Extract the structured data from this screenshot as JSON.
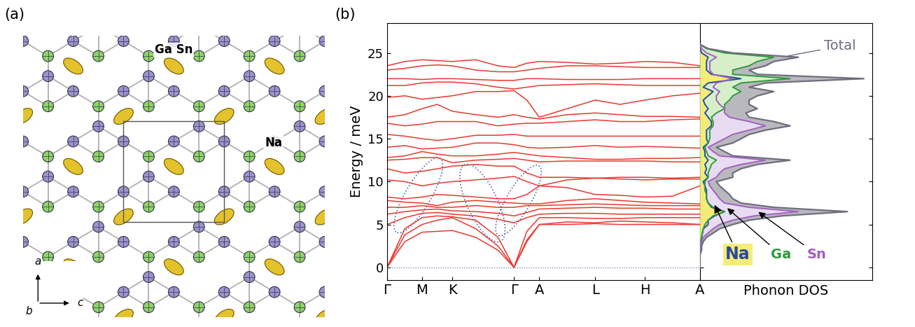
{
  "panel_labels": [
    "(a)",
    "(b)"
  ],
  "structure": {
    "labels": {
      "ga_sn": "Ga Sn",
      "na": "Na"
    },
    "axes": [
      "a",
      "b",
      "c"
    ]
  },
  "chart_data": [
    {
      "type": "line",
      "ylabel": "Energy / meV",
      "color": "#e8392e",
      "x": [
        0,
        40,
        79,
        113,
        147,
        200,
        250,
        286,
        315,
        343,
        406,
        469,
        525,
        581,
        643,
        705
      ],
      "series": [
        {
          "values": [
            0,
            3.0,
            4.1,
            4.2,
            4.3,
            3.5,
            2.0,
            0,
            3.0,
            5.0,
            5.0,
            5.1,
            5.0,
            5.0,
            5.0,
            5.0
          ]
        },
        {
          "values": [
            0,
            3.8,
            5.0,
            5.5,
            5.8,
            4.5,
            2.5,
            0,
            3.2,
            5.0,
            5.3,
            5.2,
            5.4,
            5.3,
            5.2,
            5.0
          ]
        },
        {
          "values": [
            0,
            4.5,
            5.8,
            6.0,
            5.9,
            5.5,
            3.5,
            0,
            4.2,
            5.8,
            5.8,
            5.7,
            5.7,
            5.8,
            5.8,
            5.8
          ]
        },
        {
          "values": [
            5.0,
            5.8,
            6.3,
            6.4,
            6.2,
            6.0,
            5.6,
            5.2,
            5.8,
            6.2,
            6.3,
            6.3,
            6.2,
            6.2,
            6.2,
            6.2
          ]
        },
        {
          "values": [
            6.2,
            6.5,
            6.7,
            6.8,
            6.6,
            6.5,
            6.3,
            6.0,
            6.4,
            6.8,
            6.9,
            7.0,
            6.9,
            6.9,
            6.8,
            6.8
          ]
        },
        {
          "values": [
            7.0,
            7.0,
            7.2,
            7.0,
            7.0,
            7.2,
            7.0,
            7.0,
            7.2,
            7.2,
            7.3,
            7.4,
            7.3,
            7.2,
            7.2,
            7.2
          ]
        },
        {
          "values": [
            7.8,
            7.6,
            7.5,
            7.2,
            7.6,
            7.8,
            7.6,
            7.5,
            7.4,
            7.4,
            7.8,
            8.0,
            7.8,
            7.6,
            7.5,
            7.4
          ]
        },
        {
          "values": [
            8.2,
            8.0,
            8.2,
            8.5,
            8.4,
            8.2,
            8.0,
            8.0,
            8.5,
            9.5,
            9.3,
            8.5,
            8.4,
            8.2,
            8.3,
            9.5
          ]
        },
        {
          "values": [
            10.2,
            10.0,
            9.5,
            9.8,
            10.0,
            10.2,
            10.4,
            10.6,
            10.0,
            9.5,
            10.2,
            10.4,
            10.3,
            10.2,
            10.3,
            10.3
          ]
        },
        {
          "values": [
            11.5,
            11.0,
            11.2,
            11.5,
            11.8,
            12.0,
            11.8,
            11.8,
            11.0,
            10.5,
            10.5,
            10.4,
            10.5,
            10.5,
            10.4,
            10.5
          ]
        },
        {
          "values": [
            12.5,
            12.6,
            12.8,
            12.8,
            12.2,
            12.5,
            12.6,
            12.7,
            12.5,
            12.3,
            12.4,
            12.4,
            12.4,
            12.4,
            12.3,
            12.3
          ]
        },
        {
          "values": [
            12.8,
            13.0,
            13.5,
            13.2,
            13.0,
            13.0,
            13.2,
            13.4,
            13.2,
            13.0,
            12.8,
            12.6,
            12.6,
            12.7,
            12.7,
            12.8
          ]
        },
        {
          "values": [
            14.0,
            14.2,
            13.8,
            13.9,
            14.0,
            14.5,
            14.5,
            14.3,
            14.0,
            13.9,
            14.0,
            14.2,
            14.0,
            14.1,
            14.0,
            13.9
          ]
        },
        {
          "values": [
            15.5,
            15.3,
            15.0,
            14.8,
            15.0,
            15.4,
            15.4,
            15.5,
            15.3,
            15.3,
            15.3,
            15.3,
            15.3,
            15.3,
            15.3,
            15.3
          ]
        },
        {
          "values": [
            16.8,
            16.5,
            16.7,
            17.0,
            17.0,
            17.0,
            16.5,
            16.7,
            16.8,
            16.8,
            17.0,
            17.2,
            17.0,
            17.0,
            17.2,
            17.3
          ]
        },
        {
          "values": [
            17.5,
            17.8,
            18.5,
            19.0,
            18.2,
            17.8,
            17.5,
            17.8,
            17.5,
            17.3,
            17.8,
            18.0,
            17.8,
            17.6,
            17.6,
            17.5
          ]
        },
        {
          "values": [
            19.8,
            20.0,
            19.6,
            19.8,
            20.0,
            20.5,
            20.5,
            20.6,
            19.5,
            17.5,
            18.5,
            19.5,
            19.0,
            19.5,
            20.0,
            20.3
          ]
        },
        {
          "values": [
            21.2,
            21.2,
            21.5,
            21.6,
            21.6,
            21.4,
            21.0,
            20.8,
            21.0,
            21.2,
            21.3,
            21.4,
            21.3,
            21.2,
            21.2,
            21.2
          ]
        },
        {
          "values": [
            22.0,
            22.0,
            21.9,
            22.0,
            22.0,
            21.9,
            21.8,
            21.8,
            22.0,
            22.0,
            21.9,
            21.9,
            21.9,
            22.0,
            22.0,
            22.0
          ]
        },
        {
          "values": [
            23.0,
            23.2,
            23.5,
            23.6,
            23.5,
            23.0,
            22.8,
            22.8,
            23.0,
            23.2,
            23.5,
            23.5,
            23.4,
            23.3,
            23.3,
            23.3
          ]
        },
        {
          "values": [
            23.5,
            24.0,
            24.2,
            24.1,
            24.0,
            24.2,
            23.5,
            23.3,
            23.8,
            24.0,
            23.9,
            23.7,
            23.8,
            24.0,
            23.9,
            23.5
          ]
        }
      ],
      "xlim": [
        0,
        705
      ],
      "xticks": [
        {
          "value": 0,
          "label": "Γ"
        },
        {
          "value": 79,
          "label": "M"
        },
        {
          "value": 147,
          "label": "K"
        },
        {
          "value": 286,
          "label": "Γ"
        },
        {
          "value": 343,
          "label": "A"
        },
        {
          "value": 469,
          "label": "L"
        },
        {
          "value": 581,
          "label": "H"
        },
        {
          "value": 705,
          "label": "A"
        }
      ],
      "ylim": [
        -1.5,
        28.5
      ],
      "yticks": [
        0,
        5,
        10,
        15,
        20,
        25
      ]
    },
    {
      "type": "area",
      "orientation": "horizontal",
      "xlabel": "Phonon DOS",
      "tick_labels": false,
      "x": [
        0,
        0.5,
        1,
        1.5,
        2,
        2.5,
        3,
        3.5,
        4,
        4.5,
        5,
        5.5,
        6,
        6.5,
        7,
        7.5,
        8,
        8.5,
        9,
        9.5,
        10,
        10.5,
        11,
        11.5,
        12,
        12.5,
        13,
        13.5,
        14,
        14.5,
        15,
        15.5,
        16,
        16.5,
        17,
        17.5,
        18,
        18.5,
        19,
        19.5,
        20,
        20.5,
        21,
        21.5,
        22,
        22.5,
        23,
        23.5,
        24,
        24.5,
        25,
        25.5,
        26
      ],
      "series": [
        {
          "name": "Total",
          "color": "#6e6e7e",
          "values": [
            0,
            0,
            0,
            0,
            0.01,
            0.01,
            0.02,
            0.04,
            0.08,
            0.12,
            0.2,
            0.3,
            0.5,
            0.9,
            0.45,
            0.25,
            0.2,
            0.18,
            0.15,
            0.12,
            0.1,
            0.2,
            0.2,
            0.25,
            0.35,
            0.55,
            0.2,
            0.15,
            0.1,
            0.2,
            0.25,
            0.3,
            0.4,
            0.55,
            0.45,
            0.3,
            0.28,
            0.35,
            0.3,
            0.3,
            0.35,
            0.45,
            0.3,
            0.4,
            1.0,
            0.35,
            0.3,
            0.4,
            0.45,
            0.6,
            0.2,
            0.05,
            0
          ]
        },
        {
          "name": "Sn",
          "color": "#a25fc0",
          "values": [
            0,
            0,
            0,
            0,
            0.005,
            0.005,
            0.01,
            0.02,
            0.05,
            0.08,
            0.12,
            0.2,
            0.33,
            0.6,
            0.3,
            0.15,
            0.12,
            0.1,
            0.08,
            0.06,
            0.05,
            0.1,
            0.12,
            0.15,
            0.25,
            0.4,
            0.12,
            0.08,
            0.05,
            0.1,
            0.15,
            0.2,
            0.3,
            0.4,
            0.3,
            0.18,
            0.15,
            0.15,
            0.12,
            0.1,
            0.1,
            0.12,
            0.08,
            0.1,
            0.2,
            0.08,
            0.06,
            0.06,
            0.06,
            0.1,
            0.04,
            0.01,
            0
          ]
        },
        {
          "name": "Ga",
          "color": "#2f9a3c",
          "values": [
            0,
            0,
            0,
            0,
            0,
            0,
            0.005,
            0.01,
            0.015,
            0.02,
            0.03,
            0.05,
            0.08,
            0.15,
            0.08,
            0.05,
            0.04,
            0.04,
            0.03,
            0.03,
            0.03,
            0.05,
            0.05,
            0.06,
            0.07,
            0.1,
            0.05,
            0.04,
            0.03,
            0.05,
            0.06,
            0.06,
            0.06,
            0.08,
            0.08,
            0.07,
            0.1,
            0.15,
            0.15,
            0.18,
            0.2,
            0.25,
            0.2,
            0.25,
            0.55,
            0.2,
            0.2,
            0.3,
            0.35,
            0.45,
            0.15,
            0.04,
            0
          ]
        },
        {
          "name": "Na",
          "color": "#2a4aa0",
          "values": [
            0,
            0,
            0,
            0,
            0.005,
            0.005,
            0.005,
            0.01,
            0.015,
            0.02,
            0.05,
            0.05,
            0.09,
            0.15,
            0.07,
            0.05,
            0.04,
            0.04,
            0.04,
            0.03,
            0.02,
            0.05,
            0.03,
            0.04,
            0.03,
            0.05,
            0.03,
            0.03,
            0.02,
            0.05,
            0.04,
            0.04,
            0.04,
            0.07,
            0.07,
            0.05,
            0.03,
            0.05,
            0.03,
            0.02,
            0.05,
            0.08,
            0.02,
            0.05,
            0.25,
            0.07,
            0.04,
            0.04,
            0.04,
            0.05,
            0.01,
            0,
            0
          ]
        }
      ],
      "xlim": [
        0,
        1.05
      ],
      "ylim": [
        -1.5,
        28.5
      ],
      "yticks": [
        0,
        5,
        10,
        15,
        20,
        25
      ]
    }
  ]
}
